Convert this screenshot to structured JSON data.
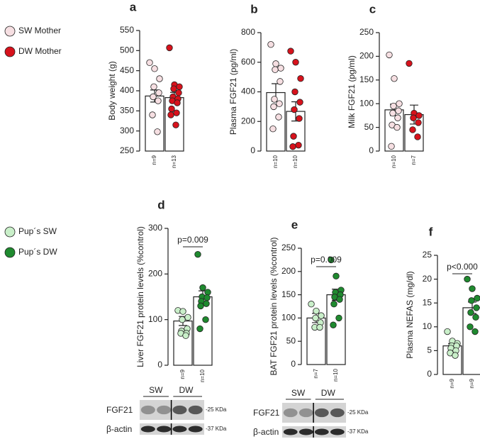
{
  "chart_data": [
    {
      "type": "bar",
      "title": "a",
      "ylabel": "Body weight (g)",
      "categories": [
        "n=9",
        "n=13"
      ],
      "colors": [
        "#f6dfe2",
        "#d7121c"
      ],
      "values": [
        387,
        383
      ],
      "errors": [
        15,
        13
      ],
      "points": [
        [
          470,
          455,
          430,
          410,
          395,
          385,
          375,
          340,
          298
        ],
        [
          507,
          415,
          410,
          405,
          395,
          385,
          380,
          375,
          370,
          355,
          345,
          340,
          315
        ]
      ],
      "ylim": [
        250,
        550
      ],
      "yticks": [
        250,
        300,
        350,
        400,
        450,
        500,
        550
      ]
    },
    {
      "type": "bar",
      "title": "b",
      "ylabel": "Plasma FGF21 (pg/ml)",
      "categories": [
        "n=10",
        "n=10"
      ],
      "colors": [
        "#f6dfe2",
        "#d7121c"
      ],
      "values": [
        395,
        268
      ],
      "errors": [
        60,
        65
      ],
      "points": [
        [
          720,
          590,
          560,
          550,
          470,
          350,
          320,
          300,
          230,
          150
        ],
        [
          675,
          600,
          490,
          400,
          330,
          280,
          220,
          100,
          40,
          30
        ]
      ],
      "ylim": [
        0,
        800
      ],
      "yticks": [
        0,
        200,
        400,
        600,
        800
      ]
    },
    {
      "type": "bar",
      "title": "c",
      "ylabel": "Milk FGF21 (pg/ml)",
      "categories": [
        "n=10",
        "n=7"
      ],
      "colors": [
        "#f6dfe2",
        "#d7121c"
      ],
      "values": [
        87,
        77
      ],
      "errors": [
        12,
        20
      ],
      "points": [
        [
          203,
          153,
          100,
          95,
          85,
          80,
          70,
          55,
          50,
          10
        ],
        [
          185,
          80,
          75,
          70,
          60,
          45,
          30
        ]
      ],
      "ylim": [
        0,
        250
      ],
      "yticks": [
        0,
        50,
        100,
        150,
        200,
        250
      ]
    },
    {
      "type": "bar",
      "title": "d",
      "ylabel": "Liver FGF21 protein levels (%control)",
      "categories": [
        "n=9",
        "n=10"
      ],
      "colors": [
        "#c9efc9",
        "#1f8a2f"
      ],
      "values": [
        97,
        150
      ],
      "errors": [
        10,
        13
      ],
      "annotation": "p=0.009",
      "points": [
        [
          120,
          118,
          105,
          100,
          80,
          75,
          70,
          70,
          65
        ],
        [
          243,
          170,
          160,
          150,
          148,
          140,
          135,
          130,
          100,
          80
        ]
      ],
      "ylim": [
        0,
        300
      ],
      "yticks": [
        0,
        100,
        200,
        300
      ]
    },
    {
      "type": "bar",
      "title": "e",
      "ylabel": "BAT FGF21 protein levels (%control)",
      "categories": [
        "n=7",
        "n=10"
      ],
      "colors": [
        "#c9efc9",
        "#1f8a2f"
      ],
      "values": [
        100,
        150
      ],
      "errors": [
        10,
        12
      ],
      "annotation": "p=0.009",
      "points": [
        [
          130,
          115,
          105,
          100,
          90,
          80,
          80
        ],
        [
          225,
          190,
          160,
          155,
          150,
          145,
          140,
          130,
          100,
          85
        ]
      ],
      "ylim": [
        0,
        250
      ],
      "yticks": [
        0,
        50,
        100,
        150,
        200,
        250
      ]
    },
    {
      "type": "bar",
      "title": "f",
      "ylabel": "Plasma NEFAS (mg/dl)",
      "categories": [
        "n=9",
        "n=9"
      ],
      "colors": [
        "#c9efc9",
        "#1f8a2f"
      ],
      "values": [
        6,
        14
      ],
      "errors": [
        0.5,
        1.2
      ],
      "annotation": "p<0.000",
      "points": [
        [
          9,
          7,
          6.5,
          6,
          6,
          5.5,
          5,
          4.5,
          4
        ],
        [
          20,
          18,
          16,
          15.5,
          14,
          13,
          12,
          10,
          9
        ]
      ],
      "ylim": [
        0,
        25
      ],
      "yticks": [
        0,
        5,
        10,
        15,
        20,
        25
      ]
    }
  ],
  "legends": [
    {
      "items": [
        {
          "name": "SW Mother",
          "color": "#f6dfe2"
        },
        {
          "name": "DW Mother",
          "color": "#d7121c"
        }
      ]
    },
    {
      "items": [
        {
          "name": "Pup´s SW",
          "color": "#c9efc9"
        },
        {
          "name": "Pup´s DW",
          "color": "#1f8a2f"
        }
      ]
    }
  ],
  "blots": [
    {
      "lanes": [
        "SW",
        "DW"
      ],
      "rows": [
        "FGF21",
        "β-actin"
      ],
      "markers": [
        "-25 KDa",
        "-37 KDa"
      ]
    },
    {
      "lanes": [
        "SW",
        "DW"
      ],
      "rows": [
        "FGF21",
        "β-actin"
      ],
      "markers": [
        "-25 KDa",
        "-37 KDa"
      ]
    }
  ]
}
